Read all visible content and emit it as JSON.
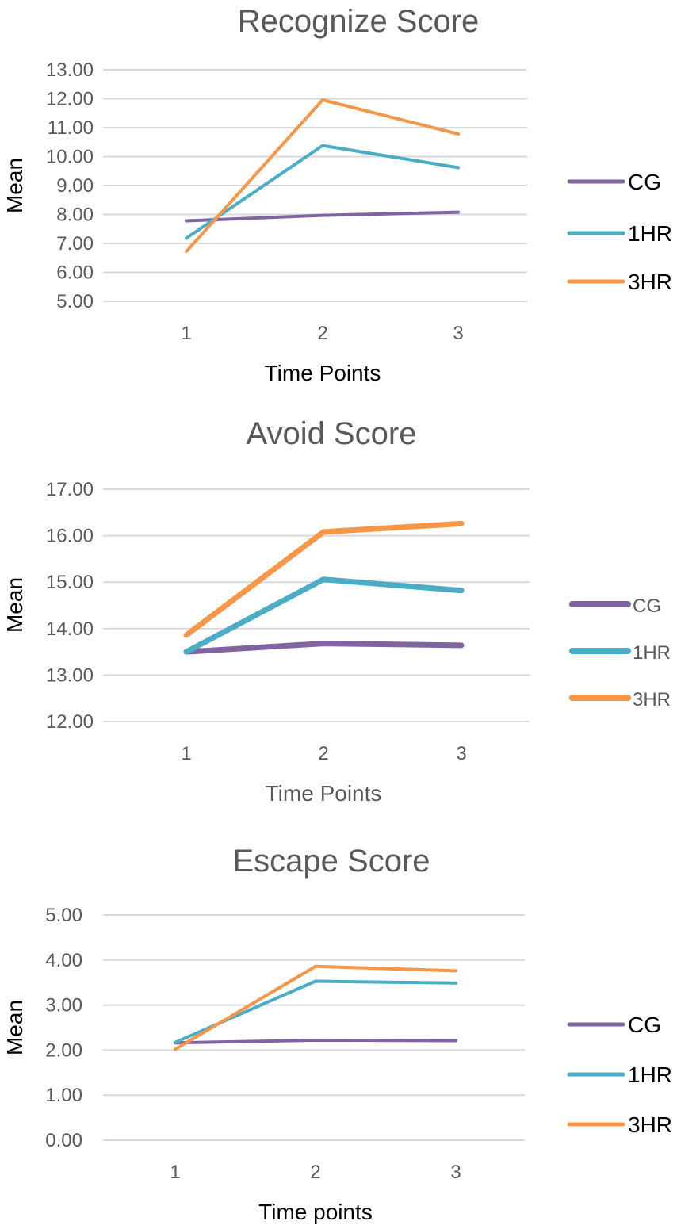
{
  "chart_data": [
    {
      "type": "line",
      "title": "Recognize Score",
      "xlabel": "Time Points",
      "ylabel": "Mean",
      "x": [
        "1",
        "2",
        "3"
      ],
      "ylim": [
        5,
        13
      ],
      "yticks": [
        "5.00",
        "6.00",
        "7.00",
        "8.00",
        "9.00",
        "10.00",
        "11.00",
        "12.00",
        "13.00"
      ],
      "grid": true,
      "legend": "right",
      "series": [
        {
          "name": "CG",
          "color": "#8064a2",
          "values": [
            7.78,
            7.97,
            8.08
          ]
        },
        {
          "name": "1HR",
          "color": "#4bacc6",
          "values": [
            7.18,
            10.38,
            9.62
          ]
        },
        {
          "name": "3HR",
          "color": "#f79646",
          "values": [
            6.72,
            11.96,
            10.78
          ]
        }
      ]
    },
    {
      "type": "line",
      "title": "Avoid Score",
      "xlabel": "Time Points",
      "ylabel": "Mean",
      "x": [
        "1",
        "2",
        "3"
      ],
      "ylim": [
        12,
        17
      ],
      "yticks": [
        "12.00",
        "13.00",
        "14.00",
        "15.00",
        "16.00",
        "17.00"
      ],
      "grid": true,
      "legend": "right",
      "series": [
        {
          "name": "CG",
          "color": "#8064a2",
          "values": [
            13.5,
            13.68,
            13.64
          ]
        },
        {
          "name": "1HR",
          "color": "#4bacc6",
          "values": [
            13.5,
            15.06,
            14.82
          ]
        },
        {
          "name": "3HR",
          "color": "#f79646",
          "values": [
            13.86,
            16.08,
            16.26
          ]
        }
      ]
    },
    {
      "type": "line",
      "title": "Escape Score",
      "xlabel": "Time points",
      "ylabel": "Mean",
      "x": [
        "1",
        "2",
        "3"
      ],
      "ylim": [
        0,
        5
      ],
      "yticks": [
        "0.00",
        "1.00",
        "2.00",
        "3.00",
        "4.00",
        "5.00"
      ],
      "grid": true,
      "legend": "right",
      "series": [
        {
          "name": "CG",
          "color": "#8064a2",
          "values": [
            2.16,
            2.22,
            2.21
          ]
        },
        {
          "name": "1HR",
          "color": "#4bacc6",
          "values": [
            2.17,
            3.53,
            3.49
          ]
        },
        {
          "name": "3HR",
          "color": "#f79646",
          "values": [
            2.02,
            3.86,
            3.76
          ]
        }
      ]
    }
  ]
}
